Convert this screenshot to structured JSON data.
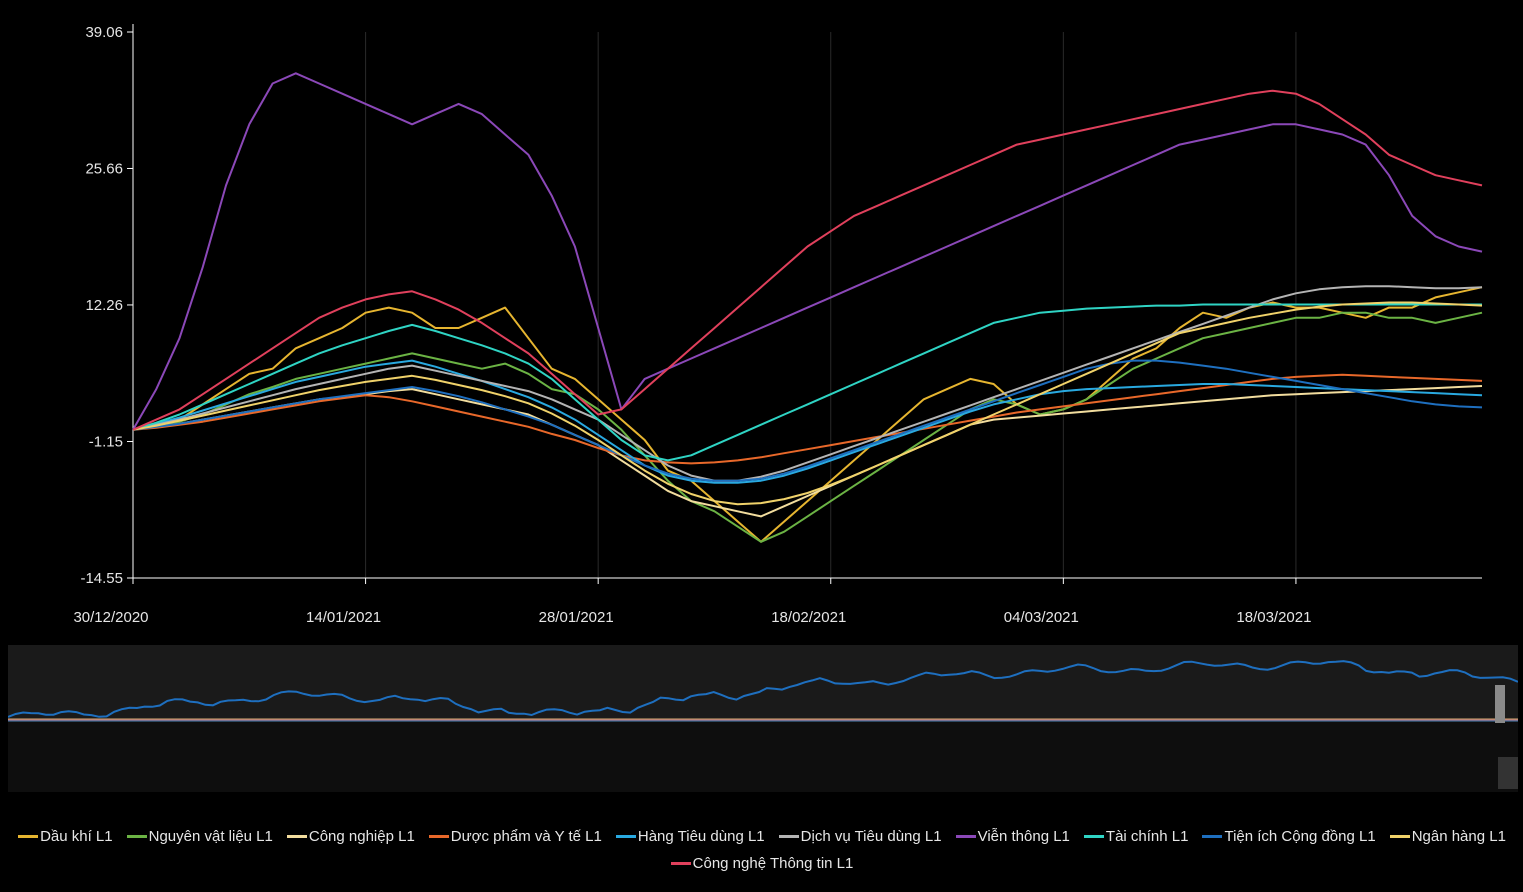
{
  "chart_data": {
    "type": "line",
    "title": "",
    "xlabel": "",
    "ylabel": "",
    "ylim": [
      -14.55,
      39.06
    ],
    "y_ticks": [
      "39.06",
      "25.66",
      "12.26",
      "-1.15",
      "-14.55"
    ],
    "y_tick_values": [
      39.06,
      25.66,
      12.26,
      -1.15,
      -14.55
    ],
    "x_tick_labels": [
      "30/12/2020",
      "14/01/2021",
      "28/01/2021",
      "18/02/2021",
      "04/03/2021",
      "18/03/2021"
    ],
    "x_tick_positions": [
      0,
      10,
      20,
      30,
      40,
      50
    ],
    "x_range": [
      0,
      58
    ],
    "grid": true,
    "legend_position": "bottom",
    "series": [
      {
        "name": "Dầu khí L1",
        "color": "#e6b530",
        "values": [
          0,
          0.5,
          1,
          2.5,
          4,
          5.5,
          6,
          8,
          9,
          10,
          11.5,
          12,
          11.5,
          10,
          10,
          11,
          12,
          9,
          6,
          5,
          3,
          1,
          -1,
          -4,
          -5,
          -7,
          -9,
          -11,
          -9,
          -7,
          -5,
          -3,
          -1,
          1,
          3,
          4,
          5,
          4.5,
          2.5,
          1.5,
          2,
          3,
          5,
          7,
          8,
          10,
          11.5,
          11,
          12,
          12.5,
          12,
          12,
          11.5,
          11,
          12,
          12,
          13,
          13.5,
          14
        ]
      },
      {
        "name": "Nguyên vật liệu L1",
        "color": "#6bb344",
        "values": [
          0,
          0.5,
          0.8,
          1.5,
          2.5,
          3.5,
          4.2,
          5,
          5.5,
          6,
          6.5,
          7,
          7.5,
          7,
          6.5,
          6,
          6.5,
          5.5,
          4,
          3.5,
          2,
          0,
          -2.5,
          -5,
          -7,
          -8,
          -9.5,
          -11,
          -10,
          -8.5,
          -7,
          -5.5,
          -4,
          -2.5,
          -1,
          0.5,
          2,
          3,
          2.5,
          1.5,
          2,
          3,
          4.5,
          6,
          7,
          8,
          9,
          9.5,
          10,
          10.5,
          11,
          11,
          11.5,
          11.5,
          11,
          11,
          10.5,
          11,
          11.5
        ]
      },
      {
        "name": "Công nghiệp L1",
        "color": "#f2dd9e",
        "values": [
          0,
          0.3,
          0.6,
          1,
          1.4,
          1.8,
          2.2,
          2.6,
          3,
          3.2,
          3.5,
          3.8,
          4,
          3.5,
          3,
          2.5,
          2,
          1.5,
          0.5,
          -0.5,
          -1.5,
          -3,
          -4.5,
          -6,
          -7,
          -7.5,
          -8,
          -8.5,
          -7.5,
          -6.5,
          -5.5,
          -4.5,
          -3.5,
          -2.5,
          -1.5,
          -0.5,
          0.5,
          1,
          1.2,
          1.4,
          1.6,
          1.8,
          2,
          2.2,
          2.4,
          2.6,
          2.8,
          3,
          3.2,
          3.4,
          3.5,
          3.6,
          3.7,
          3.8,
          3.9,
          4,
          4.1,
          4.2,
          4.3
        ]
      },
      {
        "name": "Dược phẩm và Y tế L1",
        "color": "#e8682a",
        "values": [
          0,
          0.2,
          0.5,
          0.8,
          1.2,
          1.6,
          2,
          2.4,
          2.8,
          3.1,
          3.4,
          3.2,
          2.8,
          2.3,
          1.8,
          1.3,
          0.8,
          0.3,
          -0.4,
          -1,
          -1.8,
          -2.5,
          -3,
          -3.2,
          -3.3,
          -3.2,
          -3,
          -2.7,
          -2.3,
          -1.9,
          -1.5,
          -1.1,
          -0.7,
          -0.3,
          0.1,
          0.5,
          0.9,
          1.3,
          1.7,
          2,
          2.3,
          2.6,
          2.9,
          3.2,
          3.5,
          3.8,
          4.1,
          4.4,
          4.7,
          5,
          5.2,
          5.3,
          5.4,
          5.3,
          5.2,
          5.1,
          5,
          4.9,
          4.8
        ]
      },
      {
        "name": "Hàng Tiêu dùng L1",
        "color": "#29a9e0",
        "values": [
          0,
          0.6,
          1.2,
          1.9,
          2.6,
          3.3,
          4,
          4.7,
          5.2,
          5.7,
          6.2,
          6.5,
          6.8,
          6.2,
          5.5,
          4.8,
          4,
          3.2,
          2.2,
          1,
          -0.5,
          -2,
          -3.5,
          -4.5,
          -5,
          -5.2,
          -5.2,
          -5,
          -4.5,
          -3.8,
          -3,
          -2.2,
          -1.4,
          -0.6,
          0.2,
          1,
          1.8,
          2.5,
          3,
          3.5,
          3.8,
          4,
          4.1,
          4.2,
          4.3,
          4.4,
          4.5,
          4.5,
          4.4,
          4.3,
          4.2,
          4.1,
          4,
          3.9,
          3.8,
          3.7,
          3.6,
          3.5,
          3.4
        ]
      },
      {
        "name": "Dịch vụ Tiêu dùng L1",
        "color": "#b4b4b4",
        "values": [
          0,
          0.5,
          1,
          1.6,
          2.2,
          2.8,
          3.4,
          4,
          4.5,
          5,
          5.5,
          6,
          6.3,
          5.8,
          5.3,
          4.8,
          4.3,
          3.8,
          3,
          2,
          1,
          -0.5,
          -2,
          -3.5,
          -4.5,
          -5,
          -5,
          -4.6,
          -4,
          -3.2,
          -2.4,
          -1.6,
          -0.8,
          0,
          0.8,
          1.6,
          2.4,
          3.2,
          4,
          4.8,
          5.6,
          6.4,
          7.2,
          8,
          8.8,
          9.6,
          10.4,
          11.2,
          12,
          12.8,
          13.4,
          13.8,
          14,
          14.1,
          14.1,
          14,
          13.9,
          13.9,
          14
        ]
      },
      {
        "name": "Viễn thông L1",
        "color": "#8b48b8",
        "values": [
          0,
          4,
          9,
          16,
          24,
          30,
          34,
          35,
          34,
          33,
          32,
          31,
          30,
          31,
          32,
          31,
          29,
          27,
          23,
          18,
          10,
          2,
          5,
          6,
          7,
          8,
          9,
          10,
          11,
          12,
          13,
          14,
          15,
          16,
          17,
          18,
          19,
          20,
          21,
          22,
          23,
          24,
          25,
          26,
          27,
          28,
          28.5,
          29,
          29.5,
          30,
          30,
          29.5,
          29,
          28,
          25,
          21,
          19,
          18,
          17.5
        ]
      },
      {
        "name": "Tài chính L1",
        "color": "#2fd4c4",
        "values": [
          0,
          0.7,
          1.5,
          2.5,
          3.5,
          4.5,
          5.5,
          6.5,
          7.5,
          8.3,
          9,
          9.7,
          10.3,
          9.7,
          9,
          8.3,
          7.5,
          6.5,
          5,
          3,
          1,
          -1,
          -2.5,
          -3,
          -2.5,
          -1.5,
          -0.5,
          0.5,
          1.5,
          2.5,
          3.5,
          4.5,
          5.5,
          6.5,
          7.5,
          8.5,
          9.5,
          10.5,
          11,
          11.5,
          11.7,
          11.9,
          12,
          12.1,
          12.2,
          12.2,
          12.3,
          12.3,
          12.3,
          12.3,
          12.3,
          12.3,
          12.3,
          12.3,
          12.3,
          12.3,
          12.3,
          12.3,
          12.3
        ]
      },
      {
        "name": "Tiện ích Cộng đồng L1",
        "color": "#1e6fbf",
        "values": [
          0,
          0.3,
          0.6,
          1,
          1.4,
          1.8,
          2.2,
          2.6,
          3,
          3.3,
          3.6,
          3.9,
          4.2,
          3.8,
          3.3,
          2.7,
          2,
          1.3,
          0.5,
          -0.5,
          -1.5,
          -2.5,
          -3.5,
          -4.3,
          -4.8,
          -5,
          -5,
          -4.8,
          -4.3,
          -3.6,
          -2.8,
          -2,
          -1.2,
          -0.4,
          0.4,
          1.2,
          2,
          2.8,
          3.6,
          4.4,
          5.2,
          6,
          6.5,
          6.8,
          6.8,
          6.6,
          6.3,
          6,
          5.6,
          5.2,
          4.8,
          4.4,
          4,
          3.6,
          3.2,
          2.8,
          2.5,
          2.3,
          2.2
        ]
      },
      {
        "name": "Ngân hàng L1",
        "color": "#f0d26a",
        "values": [
          0,
          0.4,
          0.9,
          1.4,
          1.9,
          2.4,
          2.9,
          3.4,
          3.9,
          4.3,
          4.7,
          5,
          5.3,
          4.9,
          4.4,
          3.9,
          3.3,
          2.6,
          1.6,
          0.4,
          -1,
          -2.5,
          -4,
          -5.3,
          -6.3,
          -7,
          -7.3,
          -7.2,
          -6.8,
          -6.2,
          -5.4,
          -4.5,
          -3.5,
          -2.5,
          -1.5,
          -0.5,
          0.5,
          1.5,
          2.5,
          3.5,
          4.5,
          5.5,
          6.5,
          7.5,
          8.5,
          9.5,
          10,
          10.5,
          11,
          11.4,
          11.8,
          12.1,
          12.3,
          12.4,
          12.5,
          12.5,
          12.4,
          12.3,
          12.2
        ]
      },
      {
        "name": "Công nghệ Thông tin L1",
        "color": "#e0405c",
        "values": [
          0,
          1,
          2,
          3.5,
          5,
          6.5,
          8,
          9.5,
          11,
          12,
          12.8,
          13.3,
          13.6,
          12.8,
          11.8,
          10.5,
          9,
          7.5,
          5.5,
          3.5,
          1.5,
          2,
          4,
          6,
          8,
          10,
          12,
          14,
          16,
          18,
          19.5,
          21,
          22,
          23,
          24,
          25,
          26,
          27,
          28,
          28.5,
          29,
          29.5,
          30,
          30.5,
          31,
          31.5,
          32,
          32.5,
          33,
          33.3,
          33,
          32,
          30.5,
          29,
          27,
          26,
          25,
          24.5,
          24
        ]
      }
    ]
  },
  "legend": [
    {
      "label": "Dầu khí L1",
      "color": "#e6b530"
    },
    {
      "label": "Nguyên vật liệu L1",
      "color": "#6bb344"
    },
    {
      "label": "Công nghiệp L1",
      "color": "#f2dd9e"
    },
    {
      "label": "Dược phẩm và Y tế L1",
      "color": "#e8682a"
    },
    {
      "label": "Hàng Tiêu dùng L1",
      "color": "#29a9e0"
    },
    {
      "label": "Dịch vụ Tiêu dùng L1",
      "color": "#b4b4b4"
    },
    {
      "label": "Viễn thông L1",
      "color": "#8b48b8"
    },
    {
      "label": "Tài chính L1",
      "color": "#2fd4c4"
    },
    {
      "label": "Tiện ích Cộng đồng L1",
      "color": "#1e6fbf"
    },
    {
      "label": "Ngân hàng L1",
      "color": "#f0d26a"
    },
    {
      "label": "Công nghệ Thông tin L1",
      "color": "#e0405c"
    }
  ],
  "colors": {
    "background": "#000000",
    "axis": "#ffffff",
    "grid": "#2a2a2a",
    "navigator_bg": "#1a1a1a",
    "navigator_line": "#1e6fbf"
  }
}
